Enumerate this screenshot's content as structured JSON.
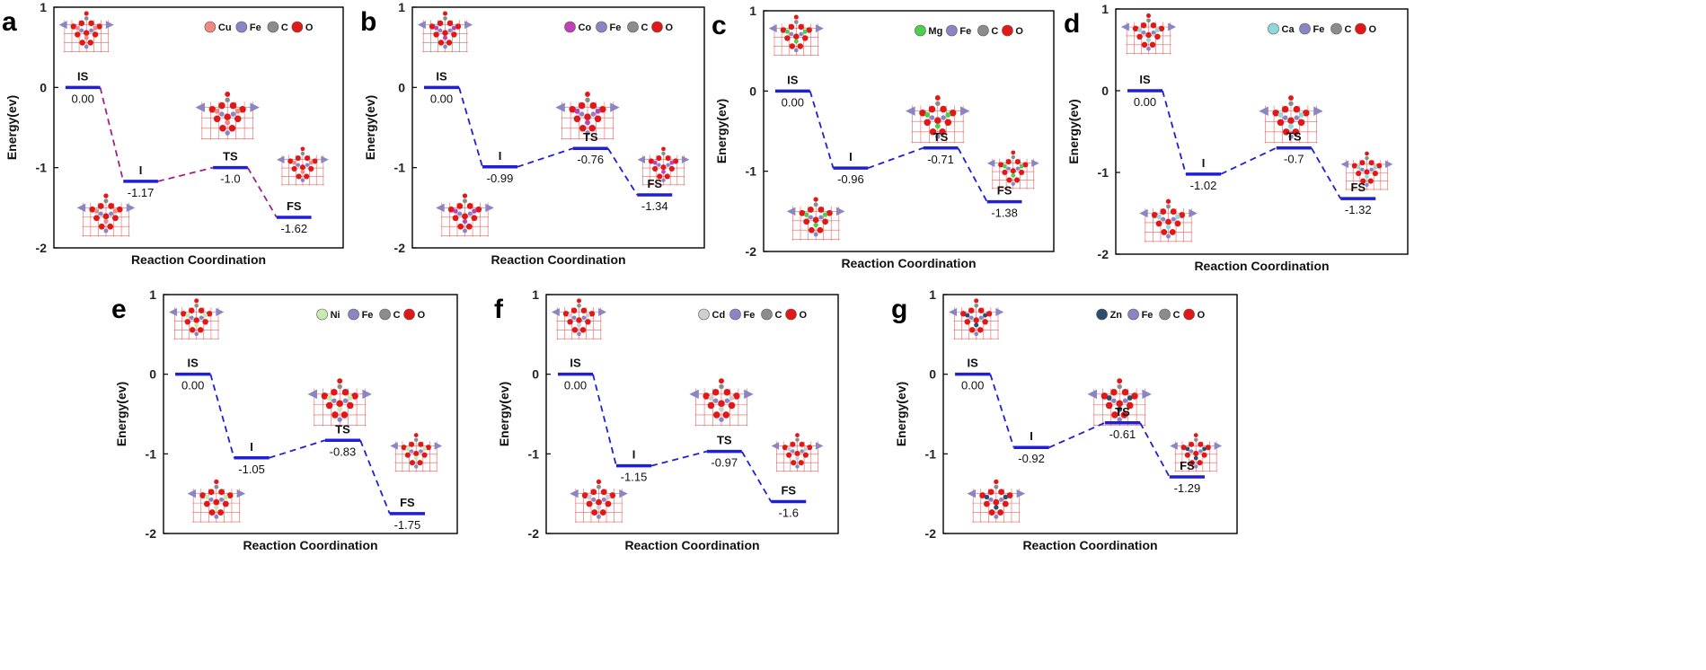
{
  "colors": {
    "level": "#1f1fd6",
    "connector_magenta": "#a0208c",
    "connector_blue": "#1f1fd6",
    "fe": "#8a85c4",
    "c": "#8c8c8c",
    "o": "#e01818",
    "lattice": "#e8645f"
  },
  "chart_data": [
    {
      "panel": "a",
      "type": "line",
      "title": "",
      "xlabel": "Reaction Coordination",
      "ylabel": "Energy(ev)",
      "ylim": [
        -2,
        1
      ],
      "yticks": [
        "1",
        "0",
        "-1",
        "-2"
      ],
      "states": [
        "IS",
        "I",
        "TS",
        "FS"
      ],
      "values": [
        0.0,
        -1.17,
        -1.0,
        -1.62
      ],
      "value_labels": [
        "0.00",
        "-1.17",
        "-1.0",
        "-1.62"
      ],
      "legend": [
        "Cu",
        "Fe",
        "C",
        "O"
      ],
      "dopant_color": "#f08a80",
      "connector": "magenta"
    },
    {
      "panel": "b",
      "type": "line",
      "title": "",
      "xlabel": "Reaction Coordination",
      "ylabel": "Energy(ev)",
      "ylim": [
        -2,
        1
      ],
      "yticks": [
        "1",
        "0",
        "-1",
        "-2"
      ],
      "states": [
        "IS",
        "I",
        "TS",
        "FS"
      ],
      "values": [
        0.0,
        -0.99,
        -0.76,
        -1.34
      ],
      "value_labels": [
        "0.00",
        "-0.99",
        "-0.76",
        "-1.34"
      ],
      "legend": [
        "Co",
        "Fe",
        "C",
        "O"
      ],
      "dopant_color": "#c040b8",
      "connector": "blue"
    },
    {
      "panel": "c",
      "type": "line",
      "title": "",
      "xlabel": "Reaction Coordination",
      "ylabel": "Energy(ev)",
      "ylim": [
        -2,
        1
      ],
      "yticks": [
        "1",
        "0",
        "-1",
        "-2"
      ],
      "states": [
        "IS",
        "I",
        "TS",
        "FS"
      ],
      "values": [
        0.0,
        -0.96,
        -0.71,
        -1.38
      ],
      "value_labels": [
        "0.00",
        "-0.96",
        "-0.71",
        "-1.38"
      ],
      "legend": [
        "Mg",
        "Fe",
        "C",
        "O"
      ],
      "dopant_color": "#4ccf4c",
      "connector": "blue"
    },
    {
      "panel": "d",
      "type": "line",
      "title": "",
      "xlabel": "Reaction Coordination",
      "ylabel": "Energy(ev)",
      "ylim": [
        -2,
        1
      ],
      "yticks": [
        "1",
        "0",
        "-1",
        "-2"
      ],
      "states": [
        "IS",
        "I",
        "TS",
        "FS"
      ],
      "values": [
        0.0,
        -1.02,
        -0.7,
        -1.32
      ],
      "value_labels": [
        "0.00",
        "-1.02",
        "-0.7",
        "-1.32"
      ],
      "legend": [
        "Ca",
        "Fe",
        "C",
        "O"
      ],
      "dopant_color": "#8fd9d9",
      "connector": "blue"
    },
    {
      "panel": "e",
      "type": "line",
      "title": "",
      "xlabel": "Reaction Coordination",
      "ylabel": "Energy(ev)",
      "ylim": [
        -2,
        1
      ],
      "yticks": [
        "1",
        "0",
        "-1",
        "-2"
      ],
      "states": [
        "IS",
        "I",
        "TS",
        "FS"
      ],
      "values": [
        0.0,
        -1.05,
        -0.83,
        -1.75
      ],
      "value_labels": [
        "0.00",
        "-1.05",
        "-0.83",
        "-1.75"
      ],
      "legend": [
        "Ni",
        "Fe",
        "C",
        "O"
      ],
      "dopant_color": "#c8ecb0",
      "connector": "blue"
    },
    {
      "panel": "f",
      "type": "line",
      "title": "",
      "xlabel": "Reaction Coordination",
      "ylabel": "Energy(ev)",
      "ylim": [
        -2,
        1
      ],
      "yticks": [
        "1",
        "0",
        "-1",
        "-2"
      ],
      "states": [
        "IS",
        "I",
        "TS",
        "FS"
      ],
      "values": [
        0.0,
        -1.15,
        -0.97,
        -1.6
      ],
      "value_labels": [
        "0.00",
        "-1.15",
        "-0.97",
        "-1.6"
      ],
      "legend": [
        "Cd",
        "Fe",
        "C",
        "O"
      ],
      "dopant_color": "#cfcfcf",
      "connector": "blue"
    },
    {
      "panel": "g",
      "type": "line",
      "title": "",
      "xlabel": "Reaction Coordination",
      "ylabel": "Energy(ev)",
      "ylim": [
        -2,
        1
      ],
      "yticks": [
        "1",
        "0",
        "-1",
        "-2"
      ],
      "states": [
        "IS",
        "I",
        "TS",
        "FS"
      ],
      "values": [
        0.0,
        -0.92,
        -0.61,
        -1.29
      ],
      "value_labels": [
        "0.00",
        "-0.92",
        "-0.61",
        "-1.29"
      ],
      "legend": [
        "Zn",
        "Fe",
        "C",
        "O"
      ],
      "dopant_color": "#2a4f6e",
      "connector": "blue"
    }
  ]
}
